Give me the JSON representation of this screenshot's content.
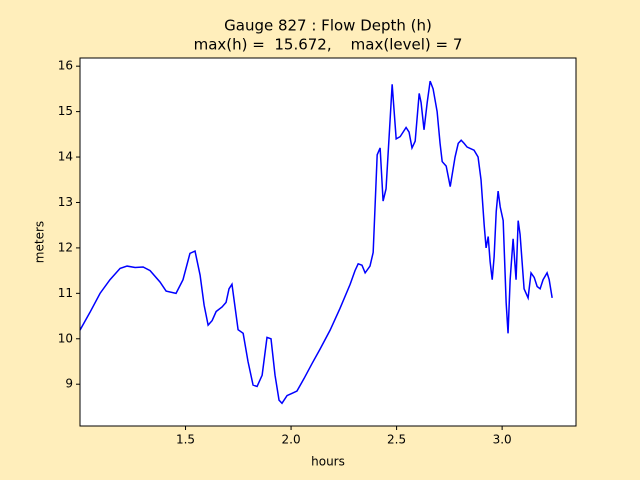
{
  "chart_data": {
    "type": "line",
    "title": [
      "Gauge 827 : Flow Depth (h)",
      "max(h) =  15.672,    max(level) = 7"
    ],
    "x_label": "hours",
    "y_label": "meters",
    "xlim": [
      1.0,
      3.35
    ],
    "ylim": [
      8.08,
      16.18
    ],
    "xticks": [
      1.5,
      {
        "value": 2.0,
        "label": "2.0"
      },
      2.5,
      {
        "value": 3.0,
        "label": "3.0"
      }
    ],
    "yticks": [
      9,
      10,
      11,
      12,
      13,
      14,
      15,
      16
    ],
    "grid": false,
    "x": [
      1.0,
      1.047,
      1.095,
      1.142,
      1.19,
      1.223,
      1.261,
      1.299,
      1.332,
      1.379,
      1.408,
      1.455,
      1.488,
      1.521,
      1.545,
      1.569,
      1.588,
      1.607,
      1.626,
      1.645,
      1.673,
      1.692,
      1.706,
      1.72,
      1.749,
      1.773,
      1.796,
      1.82,
      1.839,
      1.863,
      1.886,
      1.905,
      1.924,
      1.943,
      1.957,
      1.981,
      2.005,
      2.028,
      2.062,
      2.1,
      2.137,
      2.185,
      2.232,
      2.28,
      2.303,
      2.318,
      2.336,
      2.351,
      2.374,
      2.389,
      2.408,
      2.422,
      2.436,
      2.45,
      2.469,
      2.479,
      2.498,
      2.517,
      2.545,
      2.559,
      2.573,
      2.588,
      2.607,
      2.616,
      2.63,
      2.645,
      2.659,
      2.673,
      2.692,
      2.706,
      2.716,
      2.735,
      2.754,
      2.777,
      2.792,
      2.806,
      2.82,
      2.834,
      2.867,
      2.886,
      2.9,
      2.915,
      2.924,
      2.934,
      2.943,
      2.953,
      2.962,
      2.972,
      2.981,
      2.991,
      3.005,
      3.019,
      3.028,
      3.038,
      3.052,
      3.066,
      3.076,
      3.085,
      3.104,
      3.123,
      3.137,
      3.152,
      3.166,
      3.18,
      3.194,
      3.213,
      3.223,
      3.237
    ],
    "series": [
      {
        "name": "h",
        "color": "#0000ff",
        "values": [
          10.19,
          10.58,
          11.0,
          11.3,
          11.55,
          11.6,
          11.57,
          11.58,
          11.5,
          11.25,
          11.05,
          11.0,
          11.3,
          11.88,
          11.93,
          11.4,
          10.74,
          10.3,
          10.4,
          10.6,
          10.7,
          10.8,
          11.1,
          11.2,
          10.2,
          10.12,
          9.5,
          8.98,
          8.95,
          9.2,
          10.03,
          10.0,
          9.2,
          8.65,
          8.58,
          8.75,
          8.8,
          8.85,
          9.13,
          9.46,
          9.77,
          10.19,
          10.67,
          11.2,
          11.5,
          11.65,
          11.62,
          11.45,
          11.6,
          11.9,
          14.05,
          14.2,
          13.03,
          13.3,
          14.8,
          15.6,
          14.4,
          14.45,
          14.65,
          14.55,
          14.2,
          14.35,
          15.4,
          15.2,
          14.6,
          15.2,
          15.672,
          15.5,
          15.0,
          14.3,
          13.9,
          13.8,
          13.35,
          14.0,
          14.3,
          14.37,
          14.3,
          14.22,
          14.15,
          14.0,
          13.5,
          12.5,
          12.0,
          12.25,
          11.7,
          11.3,
          11.8,
          12.8,
          13.25,
          12.9,
          12.6,
          10.8,
          10.12,
          11.3,
          12.2,
          11.3,
          12.6,
          12.3,
          11.1,
          10.9,
          11.45,
          11.35,
          11.15,
          11.1,
          11.3,
          11.45,
          11.3,
          10.9
        ]
      }
    ]
  }
}
